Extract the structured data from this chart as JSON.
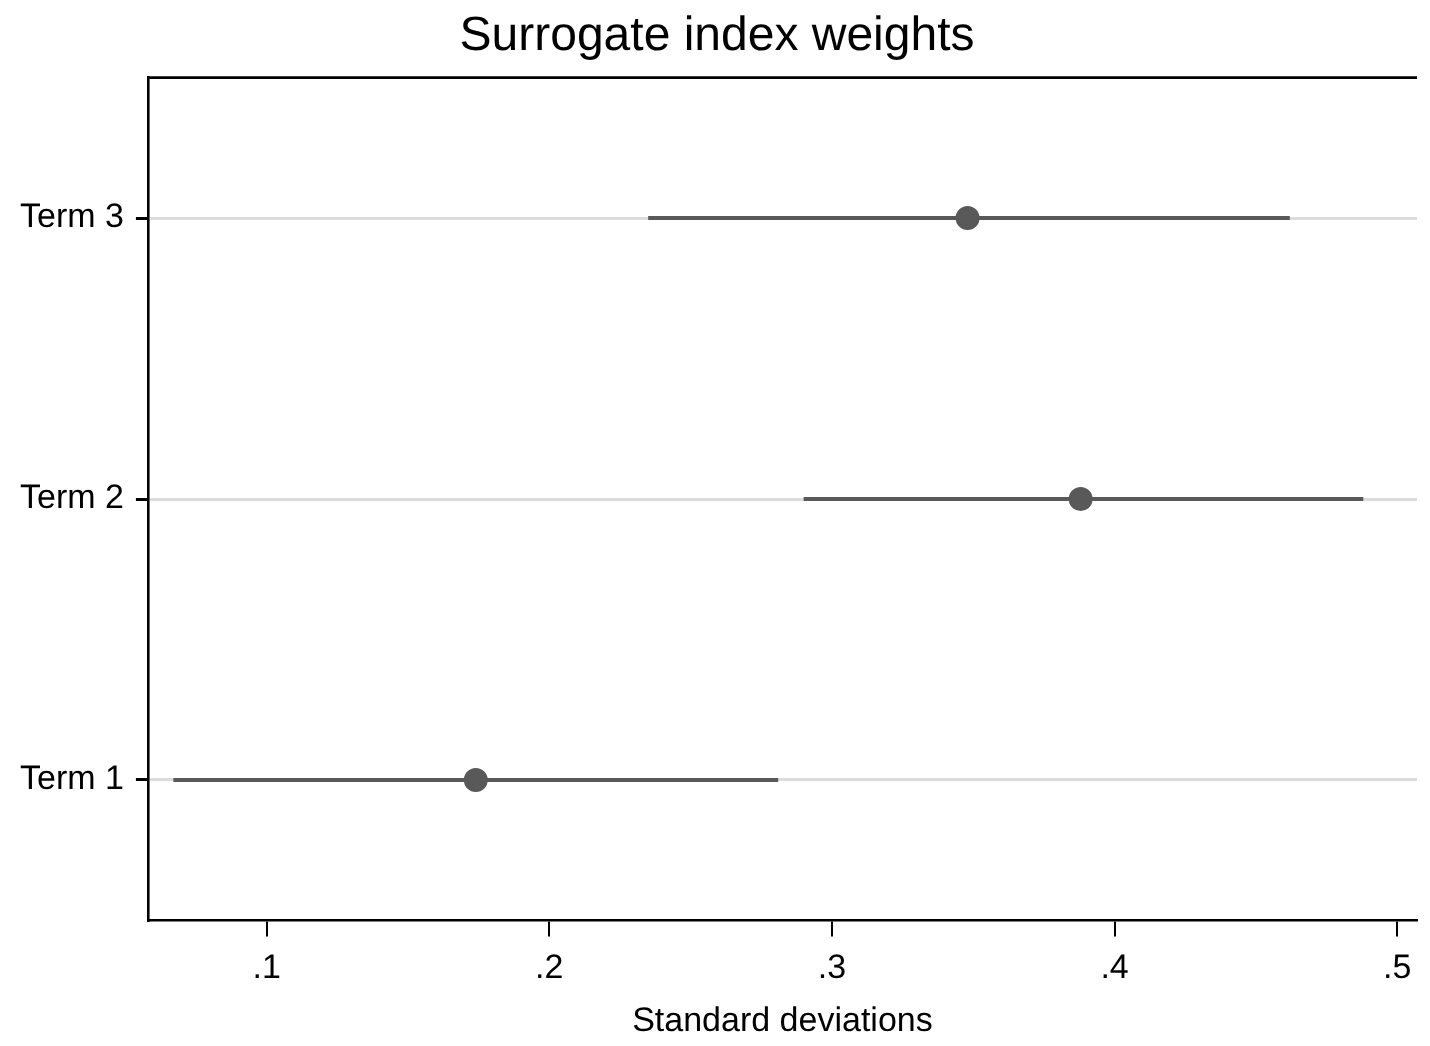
{
  "chart_data": {
    "type": "scatter",
    "orientation": "horizontal",
    "title": "Surrogate index weights",
    "xlabel": "Standard deviations",
    "categories": [
      "Term 3",
      "Term 2",
      "Term 1"
    ],
    "series": [
      {
        "color": "#595959",
        "values": [
          0.348,
          0.388,
          0.174
        ],
        "errors": [
          [
            0.235,
            0.462
          ],
          [
            0.29,
            0.488
          ],
          [
            0.067,
            0.281
          ]
        ]
      }
    ],
    "xlim": [
      0.058,
      0.507
    ],
    "xticks": [
      {
        "value": 0.1,
        "label": ".1"
      },
      {
        "value": 0.2,
        "label": ".2"
      },
      {
        "value": 0.3,
        "label": ".3"
      },
      {
        "value": 0.4,
        "label": ".4"
      },
      {
        "value": 0.5,
        "label": ".5"
      }
    ],
    "grid": "y",
    "marker": "circle",
    "legend": false
  }
}
